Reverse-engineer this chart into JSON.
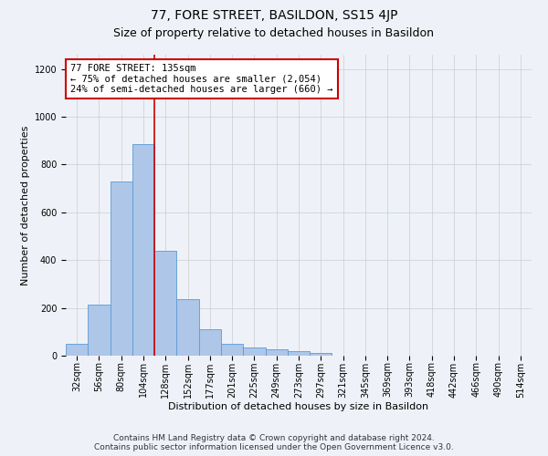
{
  "title": "77, FORE STREET, BASILDON, SS15 4JP",
  "subtitle": "Size of property relative to detached houses in Basildon",
  "xlabel": "Distribution of detached houses by size in Basildon",
  "ylabel": "Number of detached properties",
  "footer_line1": "Contains HM Land Registry data © Crown copyright and database right 2024.",
  "footer_line2": "Contains public sector information licensed under the Open Government Licence v3.0.",
  "categories": [
    "32sqm",
    "56sqm",
    "80sqm",
    "104sqm",
    "128sqm",
    "152sqm",
    "177sqm",
    "201sqm",
    "225sqm",
    "249sqm",
    "273sqm",
    "297sqm",
    "321sqm",
    "345sqm",
    "369sqm",
    "393sqm",
    "418sqm",
    "442sqm",
    "466sqm",
    "490sqm",
    "514sqm"
  ],
  "values": [
    50,
    215,
    730,
    885,
    440,
    235,
    110,
    48,
    35,
    25,
    20,
    10,
    0,
    0,
    0,
    0,
    0,
    0,
    0,
    0,
    0
  ],
  "bar_color": "#aec6e8",
  "bar_edge_color": "#5b9bd5",
  "ylim": [
    0,
    1260
  ],
  "yticks": [
    0,
    200,
    400,
    600,
    800,
    1000,
    1200
  ],
  "vline_index": 4,
  "annotation_title": "77 FORE STREET: 135sqm",
  "annotation_line1": "← 75% of detached houses are smaller (2,054)",
  "annotation_line2": "24% of semi-detached houses are larger (660) →",
  "annotation_box_color": "#ffffff",
  "annotation_box_edge": "#cc0000",
  "vline_color": "#cc0000",
  "grid_color": "#cccccc",
  "background_color": "#eef2f8",
  "title_fontsize": 10,
  "subtitle_fontsize": 9,
  "ylabel_fontsize": 8,
  "xlabel_fontsize": 8,
  "tick_fontsize": 7,
  "annotation_fontsize": 7.5,
  "footer_fontsize": 6.5
}
